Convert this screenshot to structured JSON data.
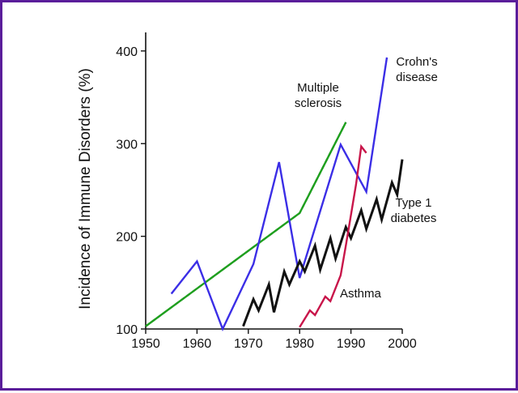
{
  "chart_data": {
    "type": "line",
    "title": "",
    "xlabel": "",
    "ylabel": "Incidence of Immune Disorders (%)",
    "xlim": [
      1950,
      2000
    ],
    "ylim": [
      100,
      420
    ],
    "x_ticks": [
      1950,
      1960,
      1970,
      1980,
      1990,
      2000
    ],
    "y_ticks": [
      100,
      200,
      300,
      400
    ],
    "grid": false,
    "legend": "inline labels",
    "series": [
      {
        "name": "Multiple sclerosis",
        "color": "#1ea01e",
        "label_lines": [
          "Multiple",
          "sclerosis"
        ],
        "x": [
          1950,
          1980,
          1989
        ],
        "y": [
          103,
          225,
          323
        ]
      },
      {
        "name": "Crohn's disease",
        "color": "#3b2ee6",
        "label_lines": [
          "Crohn's",
          "disease"
        ],
        "x": [
          1955,
          1960,
          1965,
          1971,
          1976,
          1980,
          1988,
          1993,
          1997
        ],
        "y": [
          138,
          173,
          100,
          170,
          280,
          155,
          299,
          248,
          393
        ]
      },
      {
        "name": "Type 1 diabetes",
        "color": "#111111",
        "label_lines": [
          "Type 1",
          "diabetes"
        ],
        "x": [
          1969,
          1971,
          1972,
          1974,
          1975,
          1977,
          1978,
          1980,
          1981,
          1983,
          1984,
          1986,
          1987,
          1989,
          1990,
          1992,
          1993,
          1995,
          1996,
          1998,
          1999,
          2000
        ],
        "y": [
          103,
          132,
          120,
          148,
          118,
          162,
          148,
          173,
          162,
          190,
          164,
          198,
          176,
          210,
          198,
          228,
          208,
          240,
          218,
          258,
          245,
          283
        ]
      },
      {
        "name": "Asthma",
        "color": "#c8154a",
        "label_lines": [
          "Asthma"
        ],
        "x": [
          1980,
          1982,
          1983,
          1985,
          1986,
          1988,
          1989,
          1991,
          1992,
          1993
        ],
        "y": [
          102,
          120,
          115,
          135,
          130,
          158,
          190,
          256,
          297,
          290
        ]
      }
    ]
  }
}
